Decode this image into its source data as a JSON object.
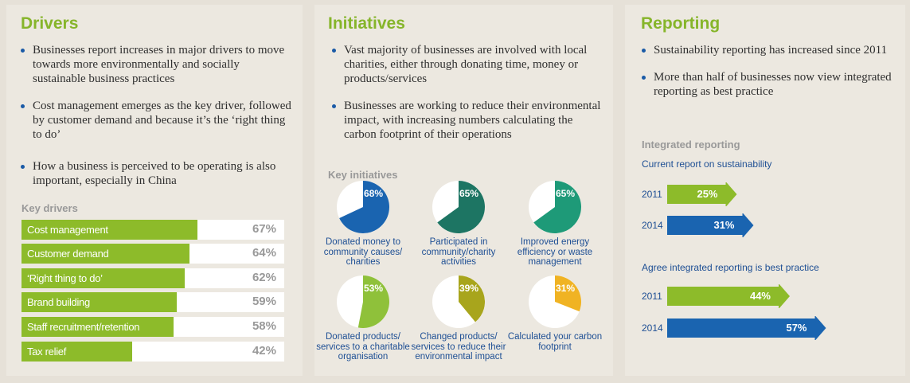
{
  "drivers": {
    "title": "Drivers",
    "bullets": [
      "Businesses report increases in major drivers to move towards more environmentally and socially sustainable business practices",
      "Cost management emerges as the key driver, followed by customer demand and because it’s the ‘right thing to do’",
      "How a business is perceived to be operating is also important, especially in China"
    ]
  },
  "initiatives": {
    "title": "Initiatives",
    "bullets": [
      "Vast majority of businesses are involved with local charities, either through donating time, money or products/services",
      "Businesses are working to reduce their environmental impact, with increasing numbers calculating the carbon footprint of their operations"
    ]
  },
  "reporting": {
    "title": "Reporting",
    "bullets": [
      "Sustainability reporting has increased since 2011",
      "More than half of businesses now view integrated reporting as best practice"
    ]
  },
  "chart_data": [
    {
      "type": "bar",
      "title": "Key drivers",
      "orientation": "horizontal",
      "categories": [
        "Cost management",
        "Customer demand",
        "‘Right thing to do’",
        "Brand building",
        "Staff recruitment/retention",
        "Tax relief"
      ],
      "values": [
        67,
        64,
        62,
        59,
        58,
        42
      ],
      "labels": [
        "67%",
        "64%",
        "62%",
        "59%",
        "58%",
        "42%"
      ],
      "xlim": [
        0,
        100
      ],
      "color": "#8dbb2a"
    },
    {
      "type": "pie",
      "title": "Key initiatives",
      "items": [
        {
          "label": "Donated money to community causes/ charities",
          "value": 68,
          "text": "68%",
          "color": "#1a64b0"
        },
        {
          "label": "Participated in community/charity activities",
          "value": 65,
          "text": "65%",
          "color": "#1d7563"
        },
        {
          "label": "Improved energy efficiency or waste management",
          "value": 65,
          "text": "65%",
          "color": "#1e9a78"
        },
        {
          "label": "Donated products/ services to a charitable organisation",
          "value": 53,
          "text": "53%",
          "color": "#8fc13a"
        },
        {
          "label": "Changed products/ services to reduce their environmental impact",
          "value": 39,
          "text": "39%",
          "color": "#a8a51c"
        },
        {
          "label": "Calculated your carbon footprint",
          "value": 31,
          "text": "31%",
          "color": "#f0b323"
        }
      ]
    },
    {
      "type": "bar",
      "title": "Integrated reporting",
      "groups": [
        {
          "name": "Current report on sustainability",
          "categories": [
            "2011",
            "2014"
          ],
          "values": [
            25,
            31
          ],
          "labels": [
            "25%",
            "31%"
          ]
        },
        {
          "name": "Agree integrated reporting is best practice",
          "categories": [
            "2011",
            "2014"
          ],
          "values": [
            44,
            57
          ],
          "labels": [
            "44%",
            "57%"
          ]
        }
      ],
      "colors": {
        "2011": "#8dbb2a",
        "2014": "#1a64b0"
      }
    }
  ]
}
